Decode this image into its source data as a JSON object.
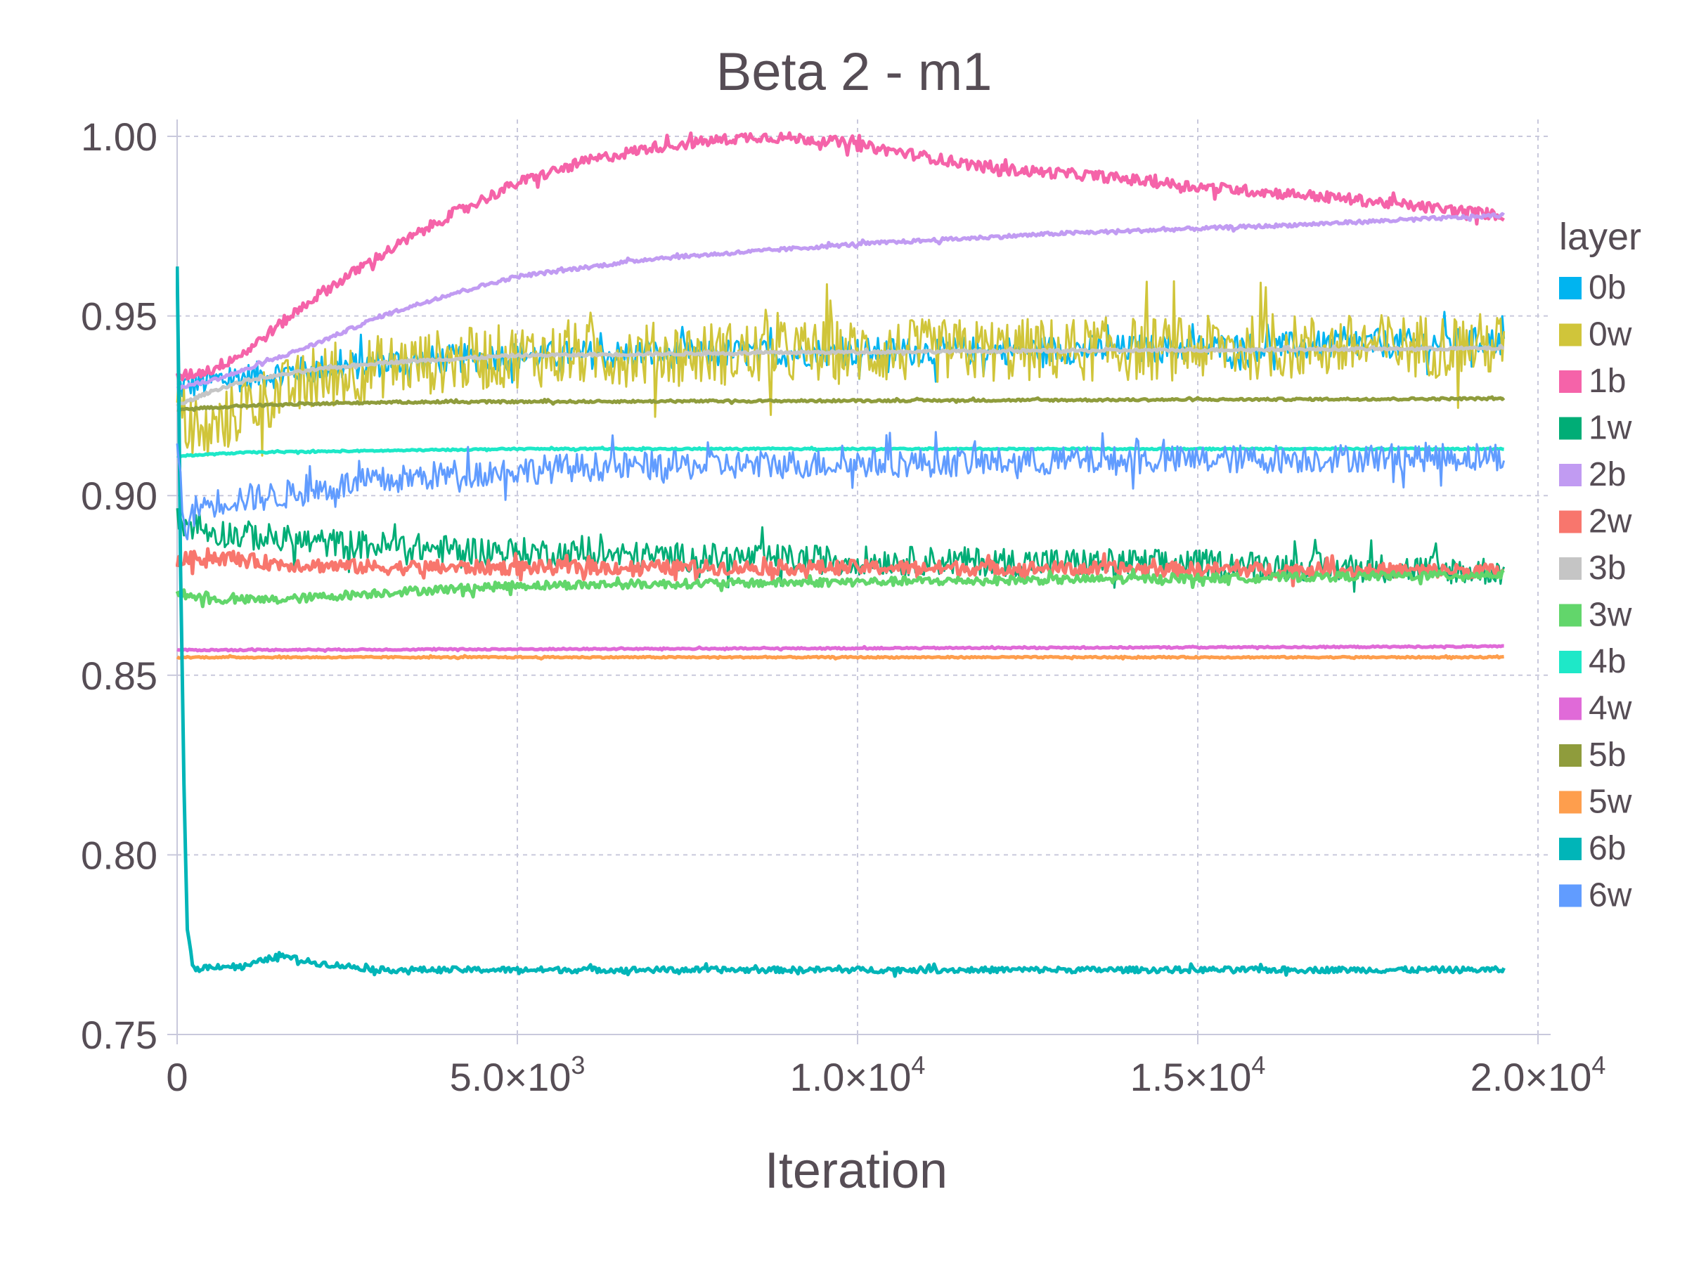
{
  "chart_data": {
    "type": "line",
    "title": "Beta 2 - m1",
    "xlabel": "Iteration",
    "ylabel": "",
    "xlim": [
      0,
      20000
    ],
    "ylim": [
      0.75,
      1.0
    ],
    "x_ticks": [
      {
        "value": 0,
        "mant": "0",
        "exp": ""
      },
      {
        "value": 5000,
        "mant": "5.0×10",
        "exp": "3"
      },
      {
        "value": 10000,
        "mant": "1.0×10",
        "exp": "4"
      },
      {
        "value": 15000,
        "mant": "1.5×10",
        "exp": "4"
      },
      {
        "value": 20000,
        "mant": "2.0×10",
        "exp": "4"
      }
    ],
    "y_ticks": [
      {
        "value": 0.75,
        "label": "0.75"
      },
      {
        "value": 0.8,
        "label": "0.80"
      },
      {
        "value": 0.85,
        "label": "0.85"
      },
      {
        "value": 0.9,
        "label": "0.90"
      },
      {
        "value": 0.95,
        "label": "0.95"
      },
      {
        "value": 1.0,
        "label": "1.00"
      }
    ],
    "grid": true,
    "legend": {
      "title": "layer",
      "position": "right"
    },
    "series": [
      {
        "name": "0b",
        "color": "#00b4f0",
        "noise": 0.004,
        "x": [
          0,
          500,
          1500,
          3000,
          5000,
          10000,
          15000,
          19500
        ],
        "y": [
          0.93,
          0.932,
          0.934,
          0.937,
          0.939,
          0.94,
          0.941,
          0.943
        ]
      },
      {
        "name": "0w",
        "color": "#d0c53a",
        "noise": 0.009,
        "x": [
          0,
          300,
          1000,
          2000,
          3000,
          5000,
          10000,
          15000,
          19500
        ],
        "y": [
          0.925,
          0.915,
          0.925,
          0.932,
          0.936,
          0.939,
          0.94,
          0.941,
          0.942
        ]
      },
      {
        "name": "1b",
        "color": "#f563a9",
        "noise": 0.0015,
        "x": [
          0,
          500,
          1000,
          2000,
          3000,
          4000,
          5000,
          6000,
          7000,
          8500,
          9500,
          10500,
          12000,
          13500,
          15000,
          17000,
          19500
        ],
        "y": [
          0.933,
          0.935,
          0.94,
          0.955,
          0.967,
          0.978,
          0.987,
          0.993,
          0.997,
          1.0,
          0.999,
          0.996,
          0.991,
          0.989,
          0.986,
          0.983,
          0.978
        ]
      },
      {
        "name": "1w",
        "color": "#00ad76",
        "noise": 0.004,
        "x": [
          0,
          500,
          2000,
          4000,
          7000,
          10000,
          15000,
          19500
        ],
        "y": [
          0.893,
          0.89,
          0.887,
          0.885,
          0.883,
          0.882,
          0.881,
          0.879
        ]
      },
      {
        "name": "2b",
        "color": "#c19bf2",
        "noise": 0.0005,
        "x": [
          0,
          500,
          1000,
          2000,
          3000,
          4000,
          5000,
          7000,
          10000,
          13000,
          16000,
          19500
        ],
        "y": [
          0.93,
          0.932,
          0.935,
          0.942,
          0.95,
          0.956,
          0.961,
          0.966,
          0.97,
          0.973,
          0.975,
          0.978
        ]
      },
      {
        "name": "2w",
        "color": "#f8766d",
        "noise": 0.002,
        "x": [
          0,
          500,
          1500,
          3000,
          6000,
          10000,
          19500
        ],
        "y": [
          0.882,
          0.883,
          0.881,
          0.88,
          0.88,
          0.88,
          0.879
        ]
      },
      {
        "name": "3b",
        "color": "#c5c5c5",
        "noise": 0.0004,
        "x": [
          0,
          500,
          1000,
          2000,
          3000,
          5000,
          10000,
          19500
        ],
        "y": [
          0.925,
          0.929,
          0.932,
          0.935,
          0.937,
          0.939,
          0.94,
          0.941
        ]
      },
      {
        "name": "3w",
        "color": "#62d66b",
        "noise": 0.0012,
        "x": [
          0,
          500,
          1500,
          3000,
          5000,
          10000,
          15000,
          19500
        ],
        "y": [
          0.873,
          0.871,
          0.871,
          0.873,
          0.875,
          0.876,
          0.877,
          0.878
        ]
      },
      {
        "name": "4b",
        "color": "#1ee8c8",
        "noise": 0.0002,
        "x": [
          0,
          1000,
          5000,
          19500
        ],
        "y": [
          0.911,
          0.912,
          0.913,
          0.913
        ]
      },
      {
        "name": "4w",
        "color": "#e06ad8",
        "noise": 0.0002,
        "x": [
          0,
          19500
        ],
        "y": [
          0.857,
          0.858
        ]
      },
      {
        "name": "5b",
        "color": "#8f9c3c",
        "noise": 0.0003,
        "x": [
          0,
          1000,
          3000,
          19500
        ],
        "y": [
          0.924,
          0.925,
          0.926,
          0.927
        ]
      },
      {
        "name": "5w",
        "color": "#fe9e4d",
        "noise": 0.0002,
        "x": [
          0,
          19500
        ],
        "y": [
          0.855,
          0.855
        ]
      },
      {
        "name": "6b",
        "color": "#00b5b8",
        "noise": 0.0008,
        "x": [
          0,
          20,
          50,
          100,
          150,
          200,
          250,
          500,
          1000,
          1500,
          2000,
          3000,
          5000,
          19500
        ],
        "y": [
          0.963,
          0.94,
          0.88,
          0.82,
          0.78,
          0.772,
          0.768,
          0.769,
          0.769,
          0.772,
          0.77,
          0.768,
          0.768,
          0.768
        ]
      },
      {
        "name": "6w",
        "color": "#619cff",
        "noise": 0.004,
        "x": [
          0,
          100,
          300,
          800,
          1500,
          2500,
          4000,
          6000,
          10000,
          15000,
          19500
        ],
        "y": [
          0.917,
          0.89,
          0.897,
          0.899,
          0.9,
          0.903,
          0.906,
          0.908,
          0.909,
          0.91,
          0.911
        ]
      }
    ]
  }
}
